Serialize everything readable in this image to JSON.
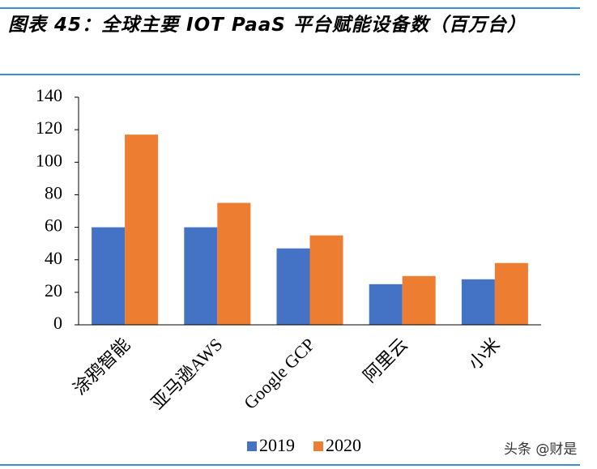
{
  "chart_data": {
    "type": "bar",
    "title": "图表 45：全球主要 IOT PaaS 平台赋能设备数（百万台）",
    "categories": [
      "涂鸦智能",
      "亚马逊AWS",
      "Google GCP",
      "阿里云",
      "小米"
    ],
    "series": [
      {
        "name": "2019",
        "color": "#4472c4",
        "values": [
          60,
          60,
          47,
          25,
          28
        ]
      },
      {
        "name": "2020",
        "color": "#ed7d31",
        "values": [
          117,
          75,
          55,
          30,
          38
        ]
      }
    ],
    "ylim": [
      0,
      140
    ],
    "yticks": [
      0,
      20,
      40,
      60,
      80,
      100,
      120,
      140
    ],
    "grid": false,
    "legend": "bottom"
  },
  "watermark": "头条 @财是"
}
